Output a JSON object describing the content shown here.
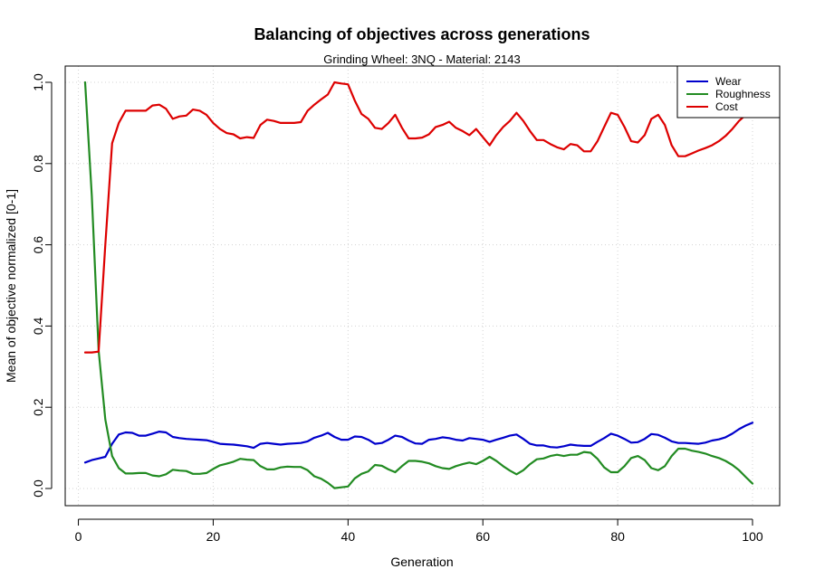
{
  "chart_data": {
    "type": "line",
    "title": "Balancing of objectives across generations",
    "subtitle": "Grinding Wheel: 3NQ - Material: 2143",
    "xlabel": "Generation",
    "ylabel": "Mean of objective normalized [0-1]",
    "xlim": [
      1,
      100
    ],
    "ylim": [
      0,
      1
    ],
    "xticks": [
      0,
      20,
      40,
      60,
      80,
      100
    ],
    "yticks": [
      0.0,
      0.2,
      0.4,
      0.6,
      0.8,
      1.0
    ],
    "ytick_labels": [
      "0.0",
      "0.2",
      "0.4",
      "0.6",
      "0.8",
      "1.0"
    ],
    "grid": true,
    "legend_position": "top-right",
    "series": [
      {
        "name": "Wear",
        "color": "#0000CC",
        "x": [
          1,
          2,
          3,
          4,
          5,
          6,
          7,
          8,
          9,
          10,
          11,
          12,
          13,
          14,
          15,
          16,
          17,
          18,
          19,
          20,
          21,
          22,
          23,
          24,
          25,
          26,
          27,
          28,
          29,
          30,
          31,
          32,
          33,
          34,
          35,
          36,
          37,
          38,
          39,
          40,
          41,
          42,
          43,
          44,
          45,
          46,
          47,
          48,
          49,
          50,
          51,
          52,
          53,
          54,
          55,
          56,
          57,
          58,
          59,
          60,
          61,
          62,
          63,
          64,
          65,
          66,
          67,
          68,
          69,
          70,
          71,
          72,
          73,
          74,
          75,
          76,
          77,
          78,
          79,
          80,
          81,
          82,
          83,
          84,
          85,
          86,
          87,
          88,
          89,
          90,
          91,
          92,
          93,
          94,
          95,
          96,
          97,
          98,
          99,
          100
        ],
        "values": [
          0.064,
          0.07,
          0.074,
          0.078,
          0.11,
          0.133,
          0.138,
          0.137,
          0.13,
          0.13,
          0.135,
          0.14,
          0.138,
          0.127,
          0.124,
          0.122,
          0.121,
          0.12,
          0.119,
          0.115,
          0.11,
          0.109,
          0.108,
          0.106,
          0.104,
          0.1,
          0.11,
          0.112,
          0.11,
          0.108,
          0.11,
          0.111,
          0.112,
          0.116,
          0.125,
          0.13,
          0.137,
          0.127,
          0.12,
          0.12,
          0.128,
          0.127,
          0.12,
          0.11,
          0.112,
          0.12,
          0.13,
          0.127,
          0.118,
          0.111,
          0.11,
          0.12,
          0.122,
          0.126,
          0.124,
          0.12,
          0.118,
          0.124,
          0.122,
          0.12,
          0.115,
          0.12,
          0.125,
          0.13,
          0.133,
          0.122,
          0.11,
          0.106,
          0.106,
          0.102,
          0.101,
          0.104,
          0.108,
          0.106,
          0.105,
          0.105,
          0.115,
          0.124,
          0.135,
          0.13,
          0.122,
          0.113,
          0.114,
          0.122,
          0.134,
          0.132,
          0.125,
          0.116,
          0.112,
          0.112,
          0.111,
          0.11,
          0.113,
          0.118,
          0.121,
          0.126,
          0.135,
          0.146,
          0.155,
          0.162
        ]
      },
      {
        "name": "Roughness",
        "color": "#228B22",
        "x": [
          1,
          2,
          3,
          4,
          5,
          6,
          7,
          8,
          9,
          10,
          11,
          12,
          13,
          14,
          15,
          16,
          17,
          18,
          19,
          20,
          21,
          22,
          23,
          24,
          25,
          26,
          27,
          28,
          29,
          30,
          31,
          32,
          33,
          34,
          35,
          36,
          37,
          38,
          39,
          40,
          41,
          42,
          43,
          44,
          45,
          46,
          47,
          48,
          49,
          50,
          51,
          52,
          53,
          54,
          55,
          56,
          57,
          58,
          59,
          60,
          61,
          62,
          63,
          64,
          65,
          66,
          67,
          68,
          69,
          70,
          71,
          72,
          73,
          74,
          75,
          76,
          77,
          78,
          79,
          80,
          81,
          82,
          83,
          84,
          85,
          86,
          87,
          88,
          89,
          90,
          91,
          92,
          93,
          94,
          95,
          96,
          97,
          98,
          99,
          100
        ],
        "values": [
          1.0,
          0.72,
          0.34,
          0.17,
          0.08,
          0.05,
          0.037,
          0.037,
          0.038,
          0.038,
          0.032,
          0.03,
          0.035,
          0.046,
          0.044,
          0.043,
          0.036,
          0.036,
          0.038,
          0.048,
          0.057,
          0.061,
          0.066,
          0.073,
          0.071,
          0.07,
          0.055,
          0.047,
          0.047,
          0.052,
          0.054,
          0.053,
          0.053,
          0.045,
          0.03,
          0.024,
          0.014,
          0.001,
          0.003,
          0.005,
          0.025,
          0.036,
          0.042,
          0.058,
          0.056,
          0.047,
          0.04,
          0.055,
          0.068,
          0.068,
          0.066,
          0.062,
          0.055,
          0.05,
          0.048,
          0.055,
          0.06,
          0.064,
          0.06,
          0.068,
          0.078,
          0.068,
          0.055,
          0.044,
          0.035,
          0.045,
          0.06,
          0.072,
          0.074,
          0.08,
          0.083,
          0.08,
          0.083,
          0.083,
          0.09,
          0.088,
          0.073,
          0.052,
          0.04,
          0.04,
          0.055,
          0.075,
          0.08,
          0.07,
          0.05,
          0.045,
          0.055,
          0.08,
          0.098,
          0.098,
          0.093,
          0.09,
          0.086,
          0.08,
          0.075,
          0.068,
          0.058,
          0.045,
          0.028,
          0.012
        ]
      },
      {
        "name": "Cost",
        "color": "#DD0000",
        "x": [
          1,
          2,
          3,
          4,
          5,
          6,
          7,
          8,
          9,
          10,
          11,
          12,
          13,
          14,
          15,
          16,
          17,
          18,
          19,
          20,
          21,
          22,
          23,
          24,
          25,
          26,
          27,
          28,
          29,
          30,
          31,
          32,
          33,
          34,
          35,
          36,
          37,
          38,
          39,
          40,
          41,
          42,
          43,
          44,
          45,
          46,
          47,
          48,
          49,
          50,
          51,
          52,
          53,
          54,
          55,
          56,
          57,
          58,
          59,
          60,
          61,
          62,
          63,
          64,
          65,
          66,
          67,
          68,
          69,
          70,
          71,
          72,
          73,
          74,
          75,
          76,
          77,
          78,
          79,
          80,
          81,
          82,
          83,
          84,
          85,
          86,
          87,
          88,
          89,
          90,
          91,
          92,
          93,
          94,
          95,
          96,
          97,
          98,
          99,
          100
        ],
        "values": [
          0.335,
          0.335,
          0.337,
          0.6,
          0.85,
          0.9,
          0.93,
          0.93,
          0.93,
          0.93,
          0.943,
          0.945,
          0.935,
          0.91,
          0.916,
          0.918,
          0.933,
          0.93,
          0.92,
          0.9,
          0.885,
          0.875,
          0.872,
          0.862,
          0.865,
          0.863,
          0.895,
          0.908,
          0.905,
          0.9,
          0.9,
          0.9,
          0.902,
          0.93,
          0.945,
          0.958,
          0.97,
          1.0,
          0.997,
          0.995,
          0.955,
          0.922,
          0.91,
          0.888,
          0.885,
          0.9,
          0.92,
          0.888,
          0.862,
          0.862,
          0.864,
          0.872,
          0.89,
          0.895,
          0.903,
          0.888,
          0.88,
          0.87,
          0.885,
          0.865,
          0.845,
          0.87,
          0.89,
          0.905,
          0.925,
          0.905,
          0.88,
          0.858,
          0.858,
          0.848,
          0.84,
          0.835,
          0.848,
          0.845,
          0.83,
          0.83,
          0.855,
          0.89,
          0.925,
          0.92,
          0.89,
          0.855,
          0.852,
          0.87,
          0.91,
          0.92,
          0.895,
          0.845,
          0.818,
          0.818,
          0.825,
          0.832,
          0.838,
          0.845,
          0.855,
          0.868,
          0.885,
          0.905,
          0.92,
          0.93
        ]
      }
    ]
  }
}
